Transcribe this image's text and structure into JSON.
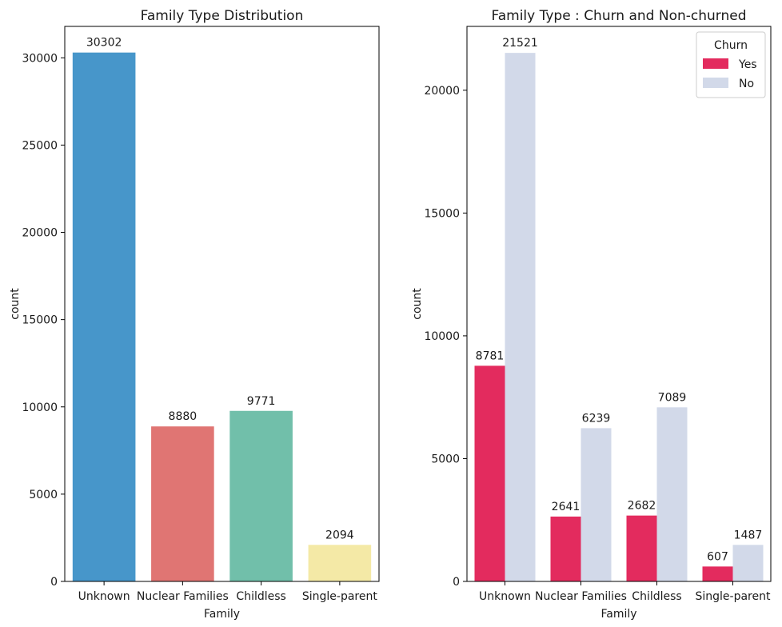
{
  "chart_data": [
    {
      "type": "bar",
      "title": "Family Type Distribution",
      "xlabel": "Family",
      "ylabel": "count",
      "categories": [
        "Unknown",
        "Nuclear Families",
        "Childless",
        "Single-parent"
      ],
      "values": [
        30302,
        8880,
        9771,
        2094
      ],
      "colors": [
        "#4796ca",
        "#e07573",
        "#71bfaa",
        "#f4e9a6"
      ],
      "ylim": [
        0,
        31800
      ],
      "yticks": [
        0,
        5000,
        10000,
        15000,
        20000,
        25000,
        30000
      ],
      "grid": false
    },
    {
      "type": "bar",
      "title": "Family Type : Churn and Non-churned",
      "xlabel": "Family",
      "ylabel": "count",
      "categories": [
        "Unknown",
        "Nuclear Families",
        "Childless",
        "Single-parent"
      ],
      "series": [
        {
          "name": "Yes",
          "values": [
            8781,
            2641,
            2682,
            607
          ],
          "color": "#e32b5e"
        },
        {
          "name": "No",
          "values": [
            21521,
            6239,
            7089,
            1487
          ],
          "color": "#d2d9e9"
        }
      ],
      "legend": {
        "title": "Churn",
        "placement": "top-right"
      },
      "ylim": [
        0,
        22600
      ],
      "yticks": [
        0,
        5000,
        10000,
        15000,
        20000
      ],
      "grid": false
    }
  ]
}
